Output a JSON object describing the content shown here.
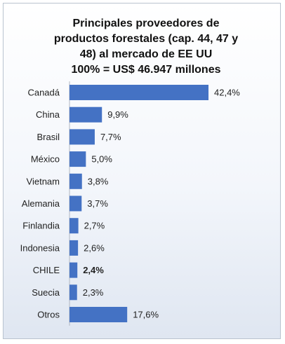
{
  "chart_data": {
    "type": "bar",
    "orientation": "horizontal",
    "title_lines": [
      "Principales proveedores de",
      "productos forestales (cap. 44, 47 y",
      "48) al mercado de EE UU",
      "100% = US$ 46.947 millones"
    ],
    "categories": [
      "Canadá",
      "China",
      "Brasil",
      "México",
      "Vietnam",
      "Alemania",
      "Finlandia",
      "Indonesia",
      "CHILE",
      "Suecia",
      "Otros"
    ],
    "values": [
      42.4,
      9.9,
      7.7,
      5.0,
      3.8,
      3.7,
      2.7,
      2.6,
      2.4,
      2.3,
      17.6
    ],
    "value_labels": [
      "42,4%",
      "9,9%",
      "7,7%",
      "5,0%",
      "3,8%",
      "3,7%",
      "2,7%",
      "2,6%",
      "2,4%",
      "2,3%",
      "17,6%"
    ],
    "highlight_category": "CHILE",
    "xlim": [
      0,
      42.4
    ],
    "bar_color": "#4472c4",
    "grid": false,
    "legend": "none"
  }
}
